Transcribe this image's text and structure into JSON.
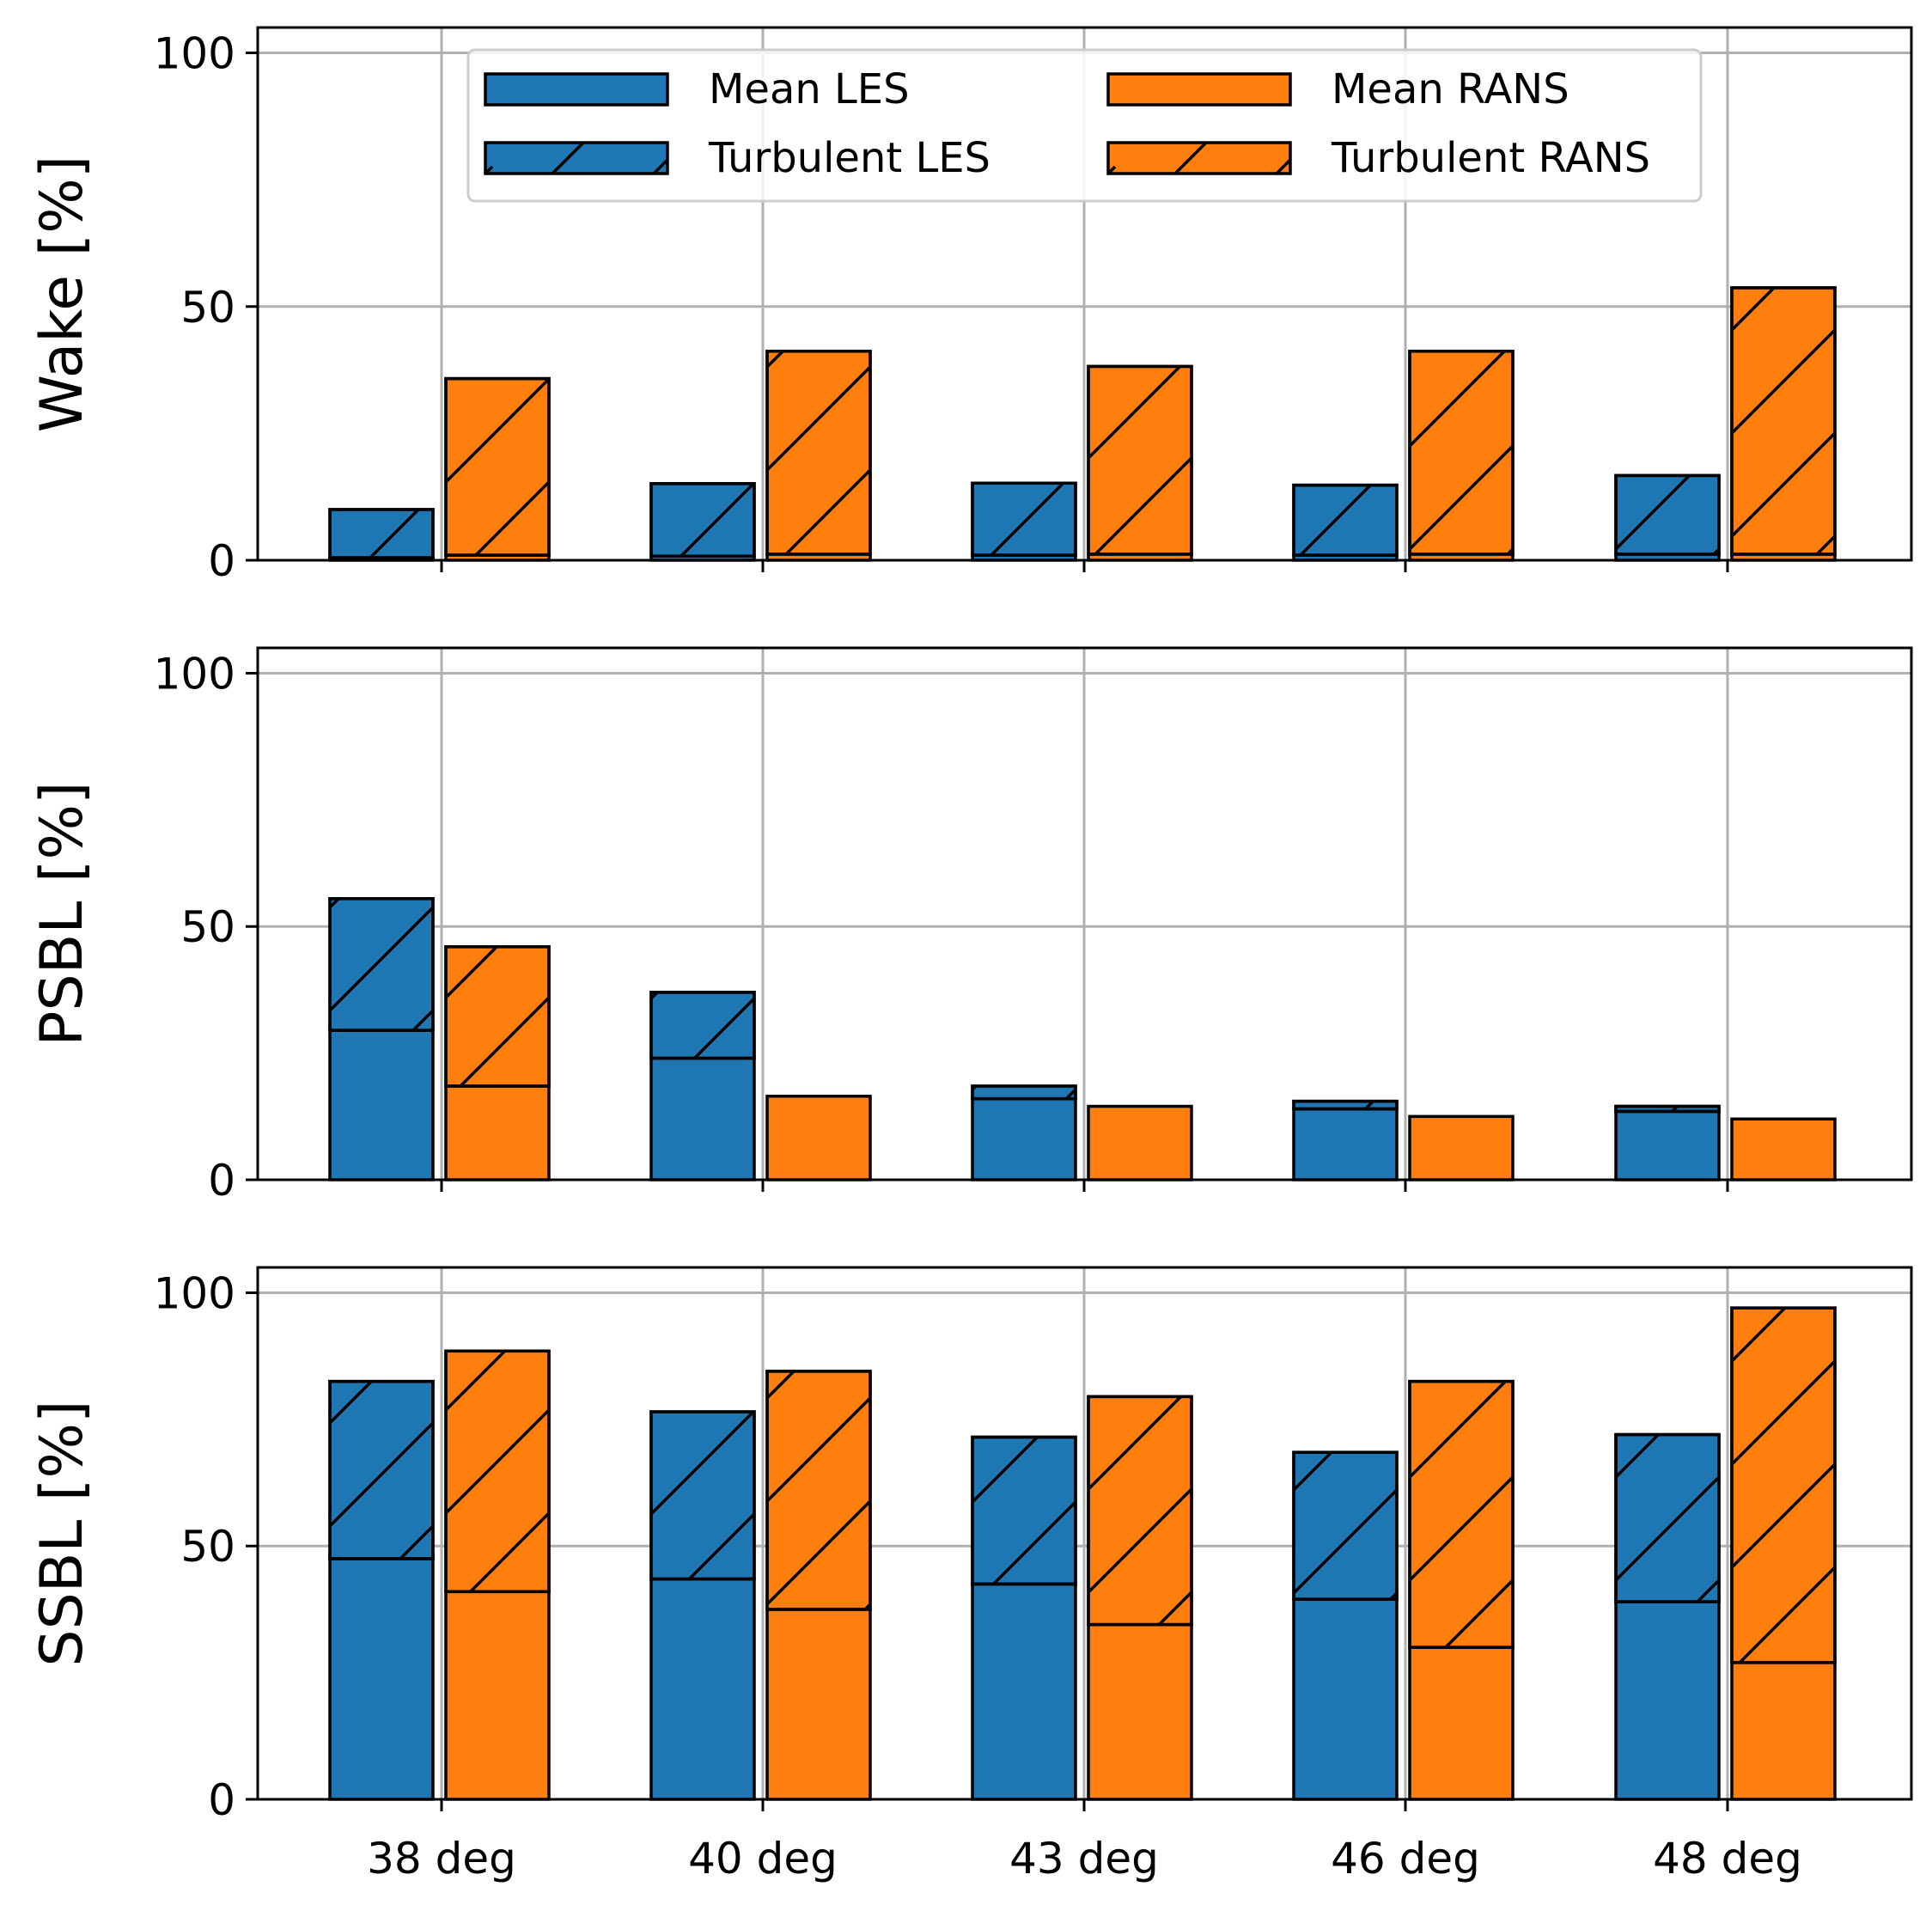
{
  "chart_data": {
    "type": "bar",
    "layout": "stacked-grouped, 3 vertically stacked panels sharing x-axis",
    "categories": [
      "38 deg",
      "40 deg",
      "43 deg",
      "46 deg",
      "48 deg"
    ],
    "legend": {
      "placement": "top-center of first panel",
      "entries": [
        {
          "key": "mean_les",
          "label": "Mean LES",
          "color": "#1f77b4",
          "hatched": false
        },
        {
          "key": "mean_rans",
          "label": "Mean RANS",
          "color": "#ff7f0e",
          "hatched": false
        },
        {
          "key": "turb_les",
          "label": "Turbulent LES",
          "color": "#1f77b4",
          "hatched": true
        },
        {
          "key": "turb_rans",
          "label": "Turbulent RANS",
          "color": "#ff7f0e",
          "hatched": true
        }
      ]
    },
    "panels": [
      {
        "ylabel": "Wake [%]",
        "ylim": [
          0,
          105
        ],
        "yticks": [
          0,
          50,
          100
        ],
        "grid": true,
        "les": {
          "mean": [
            0.5,
            0.8,
            1.0,
            1.0,
            1.2
          ],
          "turbulent": [
            9.5,
            14.3,
            14.2,
            13.8,
            15.5
          ]
        },
        "rans": {
          "mean": [
            1.0,
            1.2,
            1.2,
            1.2,
            1.2
          ],
          "turbulent": [
            34.8,
            40.0,
            37.0,
            40.0,
            52.5
          ]
        }
      },
      {
        "ylabel": "PSBL [%]",
        "ylim": [
          0,
          105
        ],
        "yticks": [
          0,
          50,
          100
        ],
        "grid": true,
        "les": {
          "mean": [
            29.5,
            24.0,
            16.0,
            14.0,
            13.5
          ],
          "turbulent": [
            26.0,
            13.0,
            2.5,
            1.5,
            1.0
          ]
        },
        "rans": {
          "mean": [
            18.5,
            16.5,
            14.5,
            12.5,
            12.0
          ],
          "turbulent": [
            27.5,
            0.0,
            0.0,
            0.0,
            0.0
          ]
        }
      },
      {
        "ylabel": "SSBL [%]",
        "ylim": [
          0,
          105
        ],
        "yticks": [
          0,
          50,
          100
        ],
        "grid": true,
        "les": {
          "mean": [
            47.5,
            43.5,
            42.5,
            39.5,
            39.0
          ],
          "turbulent": [
            35.0,
            33.0,
            29.0,
            29.0,
            33.0
          ]
        },
        "rans": {
          "mean": [
            41.0,
            37.5,
            34.5,
            30.0,
            27.0
          ],
          "turbulent": [
            47.5,
            47.0,
            45.0,
            52.5,
            70.0
          ]
        }
      }
    ],
    "colors": {
      "les": "#1f77b4",
      "rans": "#ff7f0e"
    }
  }
}
